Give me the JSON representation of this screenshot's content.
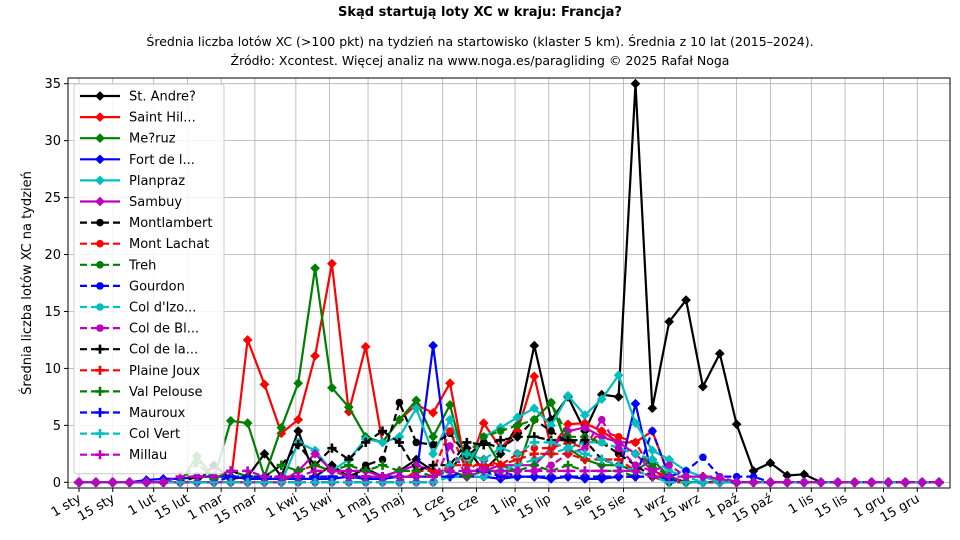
{
  "chart_data": {
    "type": "line",
    "title": "Skąd startują loty XC w kraju: Francja?",
    "subtitle_line1": "Średnia liczba lotów XC (>100 pkt) na tydzień na startowisko (klaster 5 km). Średnia z 10 lat (2015–2024).",
    "subtitle_line2": "Źródło: Xcontest. Więcej analiz na www.noga.es/paragliding © 2025 Rafał Noga",
    "xlabel": "",
    "ylabel": "Średnia liczba lotów XC na tydzień",
    "ylim": [
      -0.5,
      35.5
    ],
    "yticks": [
      0,
      5,
      10,
      15,
      20,
      25,
      30,
      35
    ],
    "grid": true,
    "legend_position": "upper-left",
    "x_weeks": [
      1,
      2,
      3,
      4,
      5,
      6,
      7,
      8,
      9,
      10,
      11,
      12,
      13,
      14,
      15,
      16,
      17,
      18,
      19,
      20,
      21,
      22,
      23,
      24,
      25,
      26,
      27,
      28,
      29,
      30,
      31,
      32,
      33,
      34,
      35,
      36,
      37,
      38,
      39,
      40,
      41,
      42,
      43,
      44,
      45,
      46,
      47,
      48,
      49,
      50,
      51,
      52
    ],
    "x_ticks": [
      {
        "label": "1 sty",
        "week": 1
      },
      {
        "label": "15 sty",
        "week": 3
      },
      {
        "label": "1 lut",
        "week": 5.43
      },
      {
        "label": "15 lut",
        "week": 7.43
      },
      {
        "label": "1 mar",
        "week": 9.43
      },
      {
        "label": "15 mar",
        "week": 11.43
      },
      {
        "label": "1 kwi",
        "week": 13.86
      },
      {
        "label": "15 kwi",
        "week": 15.86
      },
      {
        "label": "1 maj",
        "week": 18.14
      },
      {
        "label": "15 maj",
        "week": 20.14
      },
      {
        "label": "1 cze",
        "week": 22.57
      },
      {
        "label": "15 cze",
        "week": 24.57
      },
      {
        "label": "1 lip",
        "week": 26.86
      },
      {
        "label": "15 lip",
        "week": 28.86
      },
      {
        "label": "1 sie",
        "week": 31.29
      },
      {
        "label": "15 sie",
        "week": 33.29
      },
      {
        "label": "1 wrz",
        "week": 35.71
      },
      {
        "label": "15 wrz",
        "week": 37.71
      },
      {
        "label": "1 paź",
        "week": 40.0
      },
      {
        "label": "15 paź",
        "week": 42.0
      },
      {
        "label": "1 lis",
        "week": 44.43
      },
      {
        "label": "15 lis",
        "week": 46.43
      },
      {
        "label": "1 gru",
        "week": 48.71
      },
      {
        "label": "15 gru",
        "week": 50.71
      }
    ],
    "series": [
      {
        "name": "St. Andre?",
        "color": "#000000",
        "dash": "solid",
        "marker": "diamond",
        "values": [
          0,
          0,
          0,
          0,
          0,
          0,
          0,
          0,
          1.5,
          0.3,
          0.5,
          2.5,
          0.5,
          4.5,
          0.5,
          1.5,
          0.5,
          1.2,
          0.5,
          1.0,
          2.0,
          1.0,
          1.0,
          3.0,
          1.0,
          2.5,
          5.0,
          12.0,
          5.5,
          7.5,
          4.5,
          7.7,
          7.5,
          35.0,
          6.5,
          14.1,
          16.0,
          8.4,
          11.3,
          5.1,
          1.0,
          1.7,
          0.6,
          0.7,
          0,
          0,
          0,
          0,
          0,
          0,
          0,
          0
        ]
      },
      {
        "name": "Saint Hil...",
        "color": "#ff0000",
        "dash": "solid",
        "marker": "diamond",
        "values": [
          0,
          0,
          0,
          0,
          0,
          0,
          0,
          0,
          0,
          0,
          12.5,
          8.6,
          4.3,
          5.5,
          11.1,
          19.2,
          6.2,
          11.9,
          3.5,
          5.5,
          6.8,
          6.1,
          8.7,
          0.7,
          5.2,
          3.0,
          4.5,
          9.3,
          3.0,
          5.1,
          5.2,
          4.5,
          3.5,
          3.5,
          4.5,
          0.5,
          0,
          0,
          0,
          0,
          0,
          0,
          0,
          0,
          0,
          0,
          0,
          0,
          0,
          0,
          0,
          0
        ]
      },
      {
        "name": "Me?ruz",
        "color": "#008000",
        "dash": "solid",
        "marker": "diamond",
        "values": [
          0,
          0,
          0,
          0,
          0,
          0,
          0,
          2.3,
          0.3,
          5.4,
          5.2,
          0.5,
          4.8,
          8.7,
          18.8,
          8.3,
          6.6,
          4.0,
          3.5,
          5.5,
          7.2,
          4.0,
          6.8,
          1.0,
          4.0,
          1.5,
          1.0,
          5.5,
          7.0,
          3.0,
          2.0,
          1.5,
          1.5,
          1.0,
          2.0,
          0.5,
          0,
          0,
          0,
          0,
          0,
          0,
          0,
          0,
          0,
          0,
          0,
          0,
          0,
          0,
          0,
          0
        ]
      },
      {
        "name": "Fort de l...",
        "color": "#0000ff",
        "dash": "solid",
        "marker": "diamond",
        "values": [
          0,
          0,
          0,
          0,
          0.2,
          0.3,
          0.3,
          0.5,
          0.5,
          0.5,
          0.3,
          0.3,
          0.3,
          0.3,
          0.3,
          0.3,
          0.5,
          0.3,
          0.3,
          0.5,
          0.5,
          12.0,
          0.5,
          0.5,
          0.5,
          0.3,
          0.5,
          0.5,
          0.3,
          0.5,
          0.3,
          0.3,
          0.5,
          6.9,
          0.5,
          0.5,
          0,
          0,
          0,
          0,
          0,
          0,
          0,
          0,
          0,
          0,
          0,
          0,
          0,
          0,
          0,
          0
        ]
      },
      {
        "name": "Planpraz",
        "color": "#00bfbf",
        "dash": "solid",
        "marker": "diamond",
        "values": [
          0,
          0,
          0,
          0,
          0,
          0,
          0,
          0,
          0,
          0,
          0,
          0,
          0,
          3.5,
          2.8,
          1.0,
          2.0,
          3.8,
          3.5,
          4.0,
          6.5,
          2.5,
          5.5,
          1.5,
          4.0,
          4.8,
          5.7,
          6.5,
          5.0,
          7.6,
          5.9,
          7.3,
          9.4,
          5.2,
          2.8,
          2.0,
          1.0,
          0.5,
          0,
          0,
          0,
          0,
          0,
          0,
          0,
          0,
          0,
          0,
          0,
          0,
          0,
          0
        ]
      },
      {
        "name": "Sambuy",
        "color": "#bf00bf",
        "dash": "solid",
        "marker": "diamond",
        "values": [
          0,
          0,
          0,
          0,
          0,
          0,
          0,
          0,
          0,
          0,
          0,
          0,
          0,
          1.0,
          2.5,
          1.0,
          1.0,
          1.0,
          0.5,
          1.0,
          1.5,
          1.0,
          1.0,
          0.5,
          1.0,
          1.5,
          1.5,
          1.5,
          3.0,
          4.5,
          4.8,
          4.0,
          3.5,
          2.5,
          1.0,
          0.5,
          0,
          0,
          0,
          0,
          0,
          0,
          0,
          0,
          0,
          0,
          0,
          0,
          0,
          0,
          0,
          0
        ]
      },
      {
        "name": "Montlambert",
        "color": "#000000",
        "dash": "dashed",
        "marker": "circle",
        "values": [
          0,
          0,
          0,
          0,
          0,
          0,
          0,
          0,
          0,
          0,
          0,
          0,
          0,
          0,
          0,
          0,
          0,
          1.5,
          2.0,
          7.0,
          3.5,
          3.3,
          4.3,
          2.3,
          3.5,
          3.0,
          4.0,
          5.5,
          4.5,
          3.5,
          3.5,
          3.5,
          2.5,
          1.5,
          0.5,
          0,
          0,
          0,
          0,
          0,
          0,
          0,
          0,
          0,
          0,
          0,
          0,
          0,
          0,
          0,
          0,
          0
        ]
      },
      {
        "name": "Mont Lachat",
        "color": "#ff0000",
        "dash": "dashed",
        "marker": "circle",
        "values": [
          0,
          0,
          0,
          0,
          0,
          0,
          0,
          0,
          0,
          0,
          0,
          0,
          0,
          0,
          0,
          0,
          0,
          0,
          0,
          0,
          1.0,
          1.0,
          4.5,
          1.0,
          2.0,
          1.5,
          2.5,
          3.0,
          3.0,
          3.5,
          3.0,
          4.5,
          4.0,
          3.5,
          1.0,
          0.3,
          0,
          0,
          0,
          0,
          0,
          0,
          0,
          0,
          0,
          0,
          0,
          0,
          0,
          0,
          0,
          0
        ]
      },
      {
        "name": "Treh",
        "color": "#008000",
        "dash": "dashed",
        "marker": "circle",
        "values": [
          0,
          0,
          0,
          0,
          0,
          0,
          0,
          0,
          0,
          0,
          0,
          0,
          0,
          0,
          0,
          0,
          0,
          0,
          0,
          0,
          0,
          0,
          1.5,
          2.5,
          4.0,
          4.5,
          5.0,
          5.5,
          7.0,
          4.0,
          4.0,
          3.5,
          3.0,
          2.5,
          1.5,
          0.5,
          0,
          0,
          0,
          0,
          0,
          0,
          0,
          0,
          0,
          0,
          0,
          0,
          0,
          0,
          0,
          0
        ]
      },
      {
        "name": "Gourdon",
        "color": "#0000ff",
        "dash": "dashed",
        "marker": "circle",
        "values": [
          0,
          0,
          0,
          0,
          0,
          0,
          0,
          0,
          0,
          0,
          0,
          0,
          0,
          0,
          0,
          0,
          0,
          0,
          0,
          0,
          0,
          0,
          0.5,
          0.5,
          0.5,
          1.0,
          0.5,
          0.5,
          0.5,
          0.5,
          0.5,
          0.5,
          0.5,
          0.5,
          4.5,
          0.5,
          1.0,
          2.2,
          0.5,
          0.5,
          0.5,
          0,
          0,
          0,
          0,
          0,
          0,
          0,
          0,
          0,
          0,
          0
        ]
      },
      {
        "name": "Col d'Izo...",
        "color": "#00bfbf",
        "dash": "dashed",
        "marker": "circle",
        "values": [
          0,
          0,
          0,
          0,
          0,
          0,
          0,
          0,
          0,
          0,
          0,
          0,
          0,
          0,
          0,
          0,
          0,
          0,
          0,
          0,
          0,
          0,
          0.5,
          0.5,
          0.5,
          1.0,
          1.5,
          2.0,
          2.5,
          3.0,
          3.5,
          3.5,
          3.0,
          2.5,
          2.0,
          1.0,
          0.5,
          0,
          0,
          0,
          0,
          0,
          0,
          0,
          0,
          0,
          0,
          0,
          0,
          0,
          0,
          0
        ]
      },
      {
        "name": "Col de Bl...",
        "color": "#bf00bf",
        "dash": "dashed",
        "marker": "circle",
        "values": [
          0,
          0,
          0,
          0,
          0,
          0,
          0,
          0,
          0,
          0,
          0,
          0,
          0,
          0,
          0,
          0,
          0,
          0,
          0,
          0,
          0,
          0,
          3.2,
          0.5,
          1.5,
          0.5,
          1.0,
          1.0,
          1.5,
          2.5,
          3.0,
          5.5,
          3.0,
          1.5,
          1.0,
          1.5,
          0.5,
          0.5,
          0.5,
          0,
          0,
          0,
          0,
          0,
          0,
          0,
          0,
          0,
          0,
          0,
          0,
          0
        ]
      },
      {
        "name": "Col de la...",
        "color": "#000000",
        "dash": "dashed",
        "marker": "plus",
        "values": [
          0,
          0,
          0,
          0,
          0,
          0,
          0,
          0.5,
          0.5,
          1.0,
          0.5,
          0.5,
          1.5,
          3.3,
          1.5,
          3.0,
          2.0,
          3.5,
          4.5,
          3.5,
          1.0,
          1.5,
          1.5,
          3.5,
          3.3,
          3.7,
          4.0,
          4.0,
          3.7,
          3.7,
          3.7,
          2.0,
          1.5,
          1.0,
          0.5,
          0.2,
          0,
          0,
          0,
          0,
          0,
          0,
          0,
          0,
          0,
          0,
          0,
          0,
          0,
          0,
          0,
          0
        ]
      },
      {
        "name": "Plaine Joux",
        "color": "#ff0000",
        "dash": "dashed",
        "marker": "plus",
        "values": [
          0,
          0,
          0,
          0,
          0,
          0,
          0,
          0,
          0,
          0,
          0,
          0,
          0,
          1.0,
          1.5,
          1.0,
          0.5,
          0.5,
          0.5,
          0.5,
          0.5,
          0.5,
          1.5,
          1.5,
          1.5,
          1.5,
          2.0,
          2.5,
          2.5,
          2.5,
          2.0,
          2.0,
          2.0,
          1.0,
          0.5,
          0,
          0,
          0,
          0,
          0,
          0,
          0,
          0,
          0,
          0,
          0,
          0,
          0,
          0,
          0,
          0,
          0
        ]
      },
      {
        "name": "Val Pelouse",
        "color": "#008000",
        "dash": "dashed",
        "marker": "plus",
        "values": [
          0,
          0,
          0,
          0,
          0,
          0,
          0,
          1.7,
          0.3,
          1.0,
          0.5,
          0.5,
          1.5,
          1.0,
          1.5,
          1.0,
          1.5,
          1.0,
          1.5,
          1.0,
          1.0,
          0.5,
          1.0,
          0.5,
          1.0,
          1.0,
          1.0,
          1.5,
          1.0,
          1.5,
          1.0,
          1.0,
          1.0,
          0.5,
          0.5,
          0,
          0,
          0,
          0,
          0,
          0,
          0,
          0,
          0,
          0,
          0,
          0,
          0,
          0,
          0,
          0,
          0
        ]
      },
      {
        "name": "Mauroux",
        "color": "#0000ff",
        "dash": "dashed",
        "marker": "plus",
        "values": [
          0,
          0,
          0,
          0,
          0,
          0,
          0,
          0,
          0,
          0.5,
          0.5,
          0.5,
          0.5,
          0.5,
          0.5,
          0.5,
          0.5,
          0.5,
          0.5,
          0.5,
          0.5,
          0.5,
          0.5,
          1.0,
          1.0,
          0.5,
          0.5,
          0.5,
          0.5,
          0.5,
          0.5,
          0.5,
          0.5,
          0.5,
          0.5,
          0.2,
          0,
          0,
          0,
          0,
          0,
          0,
          0,
          0,
          0,
          0,
          0,
          0,
          0,
          0,
          0,
          0
        ]
      },
      {
        "name": "Col Vert",
        "color": "#00bfbf",
        "dash": "dashed",
        "marker": "plus",
        "values": [
          0,
          0,
          0,
          0,
          0,
          0,
          0,
          0,
          0,
          0,
          0,
          0,
          0,
          0,
          0,
          0,
          0,
          0,
          0,
          0,
          0,
          0,
          1.5,
          2.5,
          2.0,
          3.0,
          2.5,
          3.5,
          3.5,
          3.0,
          2.5,
          2.0,
          1.5,
          1.0,
          0.5,
          0,
          0,
          0,
          0,
          0,
          0,
          0,
          0,
          0,
          0,
          0,
          0,
          0,
          0,
          0,
          0,
          0
        ]
      },
      {
        "name": "Millau",
        "color": "#bf00bf",
        "dash": "dashed",
        "marker": "plus",
        "values": [
          0,
          0,
          0,
          0,
          0,
          0,
          0.5,
          0.5,
          0.5,
          1.0,
          1.0,
          0.5,
          0.5,
          0.5,
          1.0,
          1.0,
          0.5,
          0.5,
          0.5,
          0.5,
          0.5,
          0.5,
          1.0,
          1.0,
          1.0,
          1.0,
          1.0,
          1.0,
          1.0,
          1.0,
          1.0,
          1.0,
          1.0,
          1.0,
          0.5,
          0.5,
          0.5,
          0.5,
          0.3,
          0,
          0,
          0,
          0,
          0,
          0,
          0,
          0,
          0,
          0,
          0,
          0,
          0
        ]
      }
    ]
  }
}
